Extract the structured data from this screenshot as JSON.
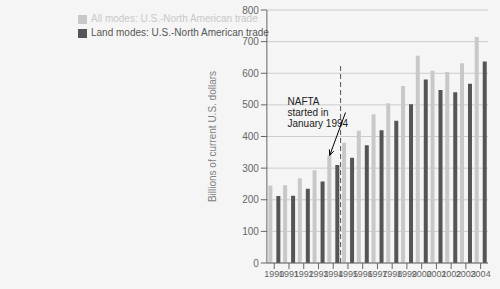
{
  "chart_data": {
    "type": "bar",
    "categories": [
      "1990",
      "1991",
      "1992",
      "1993",
      "1994",
      "1995",
      "1996",
      "1997",
      "1998",
      "1999",
      "2000",
      "2001",
      "2002",
      "2003",
      "2004"
    ],
    "series": [
      {
        "name": "All modes: U.S.-North American trade",
        "color": "#c8c8c8",
        "values": [
          245,
          246,
          268,
          293,
          340,
          380,
          418,
          470,
          505,
          560,
          655,
          608,
          604,
          632,
          715
        ]
      },
      {
        "name": "Land modes: U.S.-North American trade",
        "color": "#555555",
        "values": [
          212,
          213,
          235,
          258,
          310,
          333,
          372,
          420,
          450,
          502,
          580,
          547,
          540,
          567,
          637
        ]
      }
    ],
    "ylabel": "Billions of current U.S. dollars",
    "ylim": [
      0,
      800
    ],
    "yticks": [
      0,
      100,
      200,
      300,
      400,
      500,
      600,
      700,
      800
    ],
    "grid": true,
    "legend": "upper left",
    "annotations": [
      {
        "text": "NAFTA\nstarted in\nJanuary 1994",
        "x": "1994"
      }
    ]
  }
}
